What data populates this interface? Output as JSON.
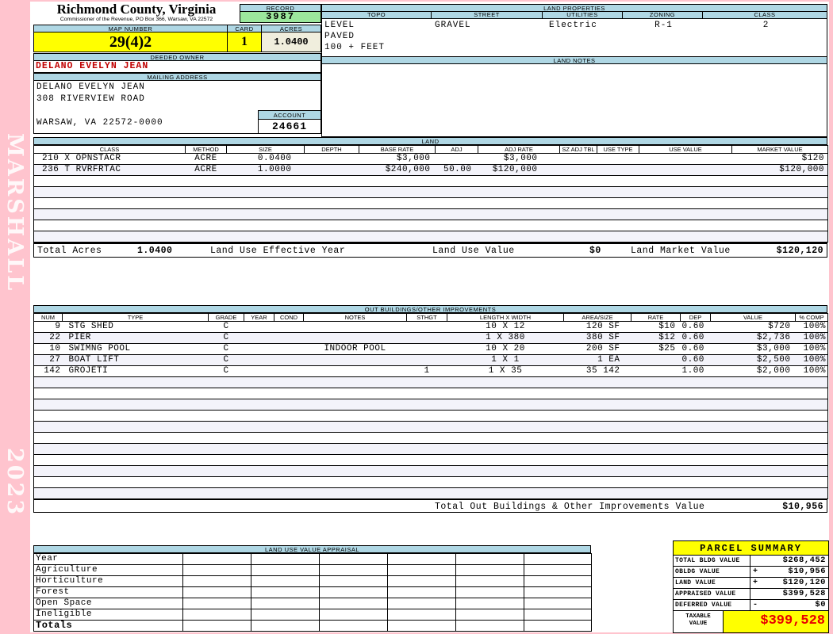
{
  "sidebar": {
    "vendor": "MARSHALL",
    "year": "2023"
  },
  "header": {
    "county": "Richmond County, Virginia",
    "commissioner": "Commissioner of the Revenue, PO Box 366, Warsaw, VA 22572",
    "record_label": "RECORD",
    "record": "3987",
    "map_number_label": "MAP NUMBER",
    "map_number": "29(4)2",
    "card_label": "CARD",
    "card": "1",
    "acres_label": "ACRES",
    "acres": "1.0400"
  },
  "land_properties": {
    "title": "LAND PROPERTIES",
    "columns": [
      "TOPO",
      "STREET",
      "UTILITIES",
      "ZONING",
      "CLASS"
    ],
    "topo": "LEVEL",
    "street": "GRAVEL",
    "utilities": "Electric",
    "zoning": "R-1",
    "class": "2",
    "topo_line2": "PAVED",
    "topo_line3": "100 + FEET"
  },
  "owner": {
    "deeded_owner_label": "DEEDED OWNER",
    "deeded_owner": "DELANO EVELYN JEAN",
    "mailing_address_label": "MAILING ADDRESS",
    "mailing_lines": [
      "DELANO EVELYN JEAN",
      "308 RIVERVIEW ROAD",
      "",
      "WARSAW, VA 22572-0000"
    ],
    "account_label": "ACCOUNT",
    "account": "24661"
  },
  "land_notes": {
    "title": "LAND NOTES"
  },
  "land": {
    "title": "LAND",
    "columns": [
      "CLASS",
      "METHOD",
      "SIZE",
      "DEPTH",
      "BASE RATE",
      "ADJ",
      "ADJ RATE",
      "SZ ADJ TBL",
      "USE TYPE",
      "USE VALUE",
      "MARKET VALUE"
    ],
    "rows": [
      [
        "210 X OPNSTACR",
        "ACRE",
        "0.0400",
        "",
        "$3,000",
        "",
        "$3,000",
        "",
        "",
        "",
        "$120"
      ],
      [
        "236 T RVRFRTAC",
        "ACRE",
        "1.0000",
        "",
        "$240,000",
        "50.00",
        "$120,000",
        "",
        "",
        "",
        "$120,000"
      ]
    ],
    "totals": {
      "total_acres_label": "Total Acres",
      "total_acres": "1.0400",
      "effective_year_label": "Land Use Effective Year",
      "use_value_label": "Land Use Value",
      "use_value": "$0",
      "market_value_label": "Land Market Value",
      "market_value": "$120,120"
    }
  },
  "out_buildings": {
    "title": "OUT BUILDINGS/OTHER IMPROVEMENTS",
    "columns": [
      "NUM",
      "TYPE",
      "GRADE",
      "YEAR",
      "COND",
      "NOTES",
      "STHGT",
      "LENGTH X WIDTH",
      "AREA/SIZE",
      "RATE",
      "DEP",
      "VALUE",
      "% COMP"
    ],
    "rows": [
      [
        "9",
        "STG SHED",
        "C",
        "",
        "",
        "",
        "",
        "10 X 12",
        "120 SF",
        "$10",
        "0.60",
        "$720",
        "100%"
      ],
      [
        "22",
        "PIER",
        "C",
        "",
        "",
        "",
        "",
        "1 X 380",
        "380 SF",
        "$12",
        "0.60",
        "$2,736",
        "100%"
      ],
      [
        "10",
        "SWIMNG POOL",
        "C",
        "",
        "",
        "INDOOR POOL",
        "",
        "10 X 20",
        "200 SF",
        "$25",
        "0.60",
        "$3,000",
        "100%"
      ],
      [
        "27",
        "BOAT LIFT",
        "C",
        "",
        "",
        "",
        "",
        "1 X 1",
        "1 EA",
        "",
        "0.60",
        "$2,500",
        "100%"
      ],
      [
        "142",
        "GROJETI",
        "C",
        "",
        "",
        "",
        "1",
        "1 X 35",
        "35 142",
        "",
        "1.00",
        "$2,000",
        "100%"
      ]
    ],
    "total_label": "Total Out Buildings & Other Improvements Value",
    "total": "$10,956"
  },
  "land_use_appraisal": {
    "title": "LAND USE VALUE APPRAISAL",
    "row_labels": [
      "Year",
      "Agriculture",
      "Horticulture",
      "Forest",
      "Open Space",
      "Ineligible",
      "Totals"
    ]
  },
  "parcel_summary": {
    "title": "PARCEL SUMMARY",
    "rows": [
      [
        "TOTAL BLDG VALUE",
        "",
        "$268,452"
      ],
      [
        "OBLDG VALUE",
        "+",
        "$10,956"
      ],
      [
        "LAND VALUE",
        "+",
        "$120,120"
      ],
      [
        "APPRAISED VALUE",
        "",
        "$399,528"
      ],
      [
        "DEFERRED VALUE",
        "-",
        "$0"
      ]
    ],
    "taxable_label_line1": "TAXABLE",
    "taxable_label_line2": "VALUE",
    "taxable_value": "$399,528"
  },
  "colors": {
    "page_background": "#ffc4ce",
    "header_bar": "#afd7e4",
    "record_green": "#9ce79c",
    "highlight_yellow": "#ffff00",
    "acres_cream": "#f0eedd",
    "owner_red": "#c00000",
    "taxable_red": "#e80000"
  }
}
